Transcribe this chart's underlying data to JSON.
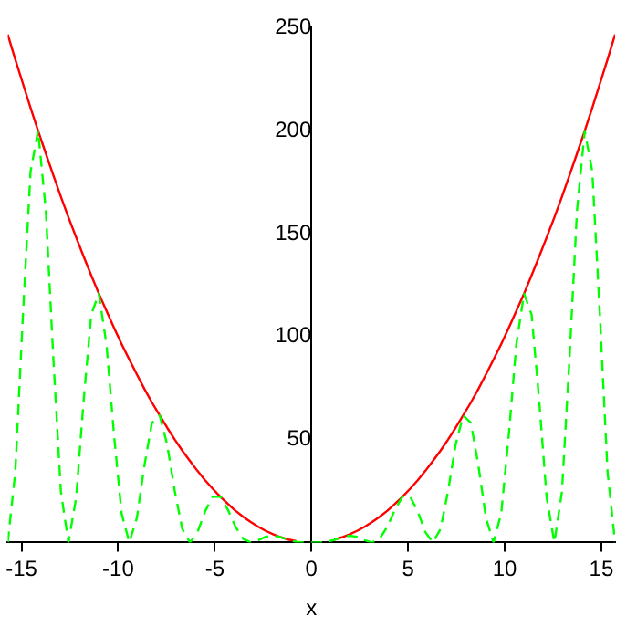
{
  "chart_data": {
    "type": "line",
    "xlabel": "x",
    "x": [
      -15.71,
      -15.32,
      -14.92,
      -14.53,
      -14.14,
      -13.74,
      -13.35,
      -12.96,
      -12.57,
      -12.17,
      -11.78,
      -11.39,
      -11.0,
      -10.6,
      -10.21,
      -9.82,
      -9.42,
      -9.03,
      -8.64,
      -8.25,
      -7.85,
      -7.46,
      -7.07,
      -6.68,
      -6.28,
      -5.89,
      -5.5,
      -5.11,
      -4.71,
      -4.32,
      -3.93,
      -3.53,
      -3.14,
      -2.75,
      -2.36,
      -1.96,
      -1.57,
      -1.18,
      -0.79,
      -0.39,
      0,
      0.39,
      0.79,
      1.18,
      1.57,
      1.96,
      2.36,
      2.75,
      3.14,
      3.53,
      3.93,
      4.32,
      4.71,
      5.11,
      5.5,
      5.89,
      6.28,
      6.68,
      7.07,
      7.46,
      7.85,
      8.25,
      8.64,
      9.03,
      9.42,
      9.82,
      10.21,
      10.6,
      11.0,
      11.39,
      11.78,
      12.17,
      12.57,
      12.96,
      13.35,
      13.74,
      14.14,
      14.53,
      14.92,
      15.32,
      15.71
    ],
    "series": [
      {
        "color": "#00ff00",
        "line_style": "dashed",
        "values": [
          0,
          34.3,
          111.3,
          180.2,
          199.9,
          161.3,
          89.1,
          24.6,
          0,
          21.7,
          69.4,
          110.7,
          120.9,
          96.0,
          52.1,
          14.1,
          0,
          11.9,
          37.3,
          58.1,
          61.7,
          47.5,
          25.0,
          6.5,
          0,
          5.1,
          15.1,
          22.2,
          22.2,
          15.9,
          7.7,
          1.8,
          0,
          1.1,
          2.8,
          3.3,
          2.5,
          1.2,
          0.3,
          0.0,
          0,
          0.0,
          0.3,
          1.2,
          2.5,
          3.3,
          2.8,
          1.1,
          0,
          1.8,
          7.7,
          15.9,
          22.2,
          22.2,
          15.1,
          5.1,
          0,
          6.5,
          25.0,
          47.5,
          61.7,
          58.1,
          37.3,
          11.9,
          0,
          14.1,
          52.1,
          96.0,
          120.9,
          110.7,
          69.4,
          21.7,
          0,
          24.6,
          89.1,
          161.3,
          199.9,
          180.2,
          111.3,
          34.3,
          0
        ]
      },
      {
        "color": "#ff0000",
        "line_style": "solid",
        "values": [
          246.7,
          234.6,
          222.7,
          211.1,
          199.9,
          188.9,
          178.3,
          167.9,
          157.9,
          148.2,
          138.8,
          129.7,
          120.9,
          112.4,
          104.2,
          96.4,
          88.8,
          81.6,
          74.6,
          68.0,
          61.7,
          55.7,
          50.0,
          44.6,
          39.5,
          34.7,
          30.2,
          26.1,
          22.2,
          18.7,
          15.4,
          12.5,
          9.9,
          7.6,
          5.6,
          3.9,
          2.5,
          1.4,
          0.6,
          null,
          null,
          null,
          null,
          1.4,
          2.5,
          3.9,
          5.6,
          7.6,
          9.9,
          12.5,
          15.4,
          18.7,
          22.2,
          26.1,
          30.2,
          34.7,
          39.5,
          44.6,
          50.0,
          55.7,
          61.7,
          68.0,
          74.6,
          81.6,
          88.8,
          96.4,
          104.2,
          112.4,
          120.9,
          129.7,
          138.8,
          148.2,
          157.9,
          167.9,
          178.3,
          188.9,
          199.9,
          211.1,
          222.7,
          234.6,
          246.7
        ]
      }
    ],
    "xlim": [
      -15.71,
      15.71
    ],
    "xticks": [
      -15,
      -10,
      -5,
      0,
      5,
      10,
      15
    ],
    "ylim": [
      0,
      250
    ],
    "yticks": [
      50,
      100,
      150,
      200,
      250
    ],
    "grid": false,
    "legend": false,
    "marker": "none"
  }
}
